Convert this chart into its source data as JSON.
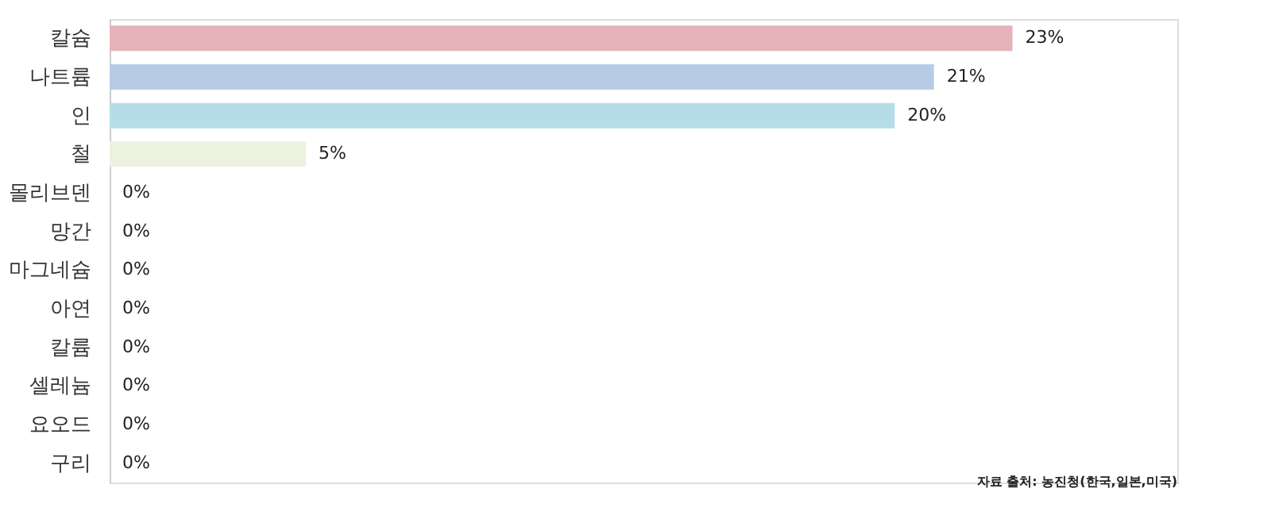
{
  "chart_data": {
    "type": "bar",
    "orientation": "horizontal",
    "categories": [
      "칼슘",
      "나트륨",
      "인",
      "철",
      "몰리브덴",
      "망간",
      "마그네슘",
      "아연",
      "칼륨",
      "셀레늄",
      "요오드",
      "구리"
    ],
    "values": [
      23,
      21,
      20,
      5,
      0,
      0,
      0,
      0,
      0,
      0,
      0,
      0
    ],
    "value_labels": [
      "23%",
      "21%",
      "20%",
      "5%",
      "0%",
      "0%",
      "0%",
      "0%",
      "0%",
      "0%",
      "0%",
      "0%"
    ],
    "colors": [
      "#e6b3b8",
      "#b7cbe6",
      "#b5dde8",
      "#edf1e0",
      "#dddddd",
      "#dddddd",
      "#dddddd",
      "#dddddd",
      "#dddddd",
      "#dddddd",
      "#dddddd",
      "#dddddd"
    ],
    "xlim": [
      0,
      27.2
    ],
    "grid": false,
    "annotations": [
      "자료 출처: 농진청(한국,일본,미국)"
    ]
  }
}
